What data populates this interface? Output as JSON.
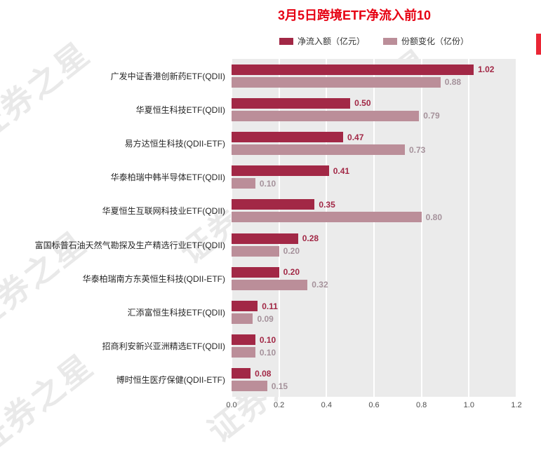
{
  "title": "3月5日跨境ETF净流入前10",
  "watermark": "证券之星",
  "colors": {
    "inflow_bar": "#a22846",
    "share_change_bar": "#bb8e99",
    "title_red": "#e60012"
  },
  "legend": [
    {
      "label": "净流入额（亿元）"
    },
    {
      "label": "份额变化（亿份）"
    }
  ],
  "chart_data": {
    "type": "bar",
    "orientation": "horizontal",
    "title": "3月5日跨境ETF净流入前10",
    "xlabel": "",
    "ylabel": "",
    "xlim": [
      0,
      1.2
    ],
    "xticks": [
      "0.0",
      "0.2",
      "0.4",
      "0.6",
      "0.8",
      "1.0",
      "1.2"
    ],
    "grid": true,
    "legend_position": "top",
    "categories": [
      "广发中证香港创新药ETF(QDII)",
      "华夏恒生科技ETF(QDII)",
      "易方达恒生科技(QDII-ETF)",
      "华泰柏瑞中韩半导体ETF(QDII)",
      "华夏恒生互联网科技业ETF(QDII)",
      "富国标普石油天然气勘探及生产精选行业ETF(QDII)",
      "华泰柏瑞南方东英恒生科技(QDII-ETF)",
      "汇添富恒生科技ETF(QDII)",
      "招商利安新兴亚洲精选ETF(QDII)",
      "博时恒生医疗保健(QDII-ETF)"
    ],
    "series": [
      {
        "name": "净流入额（亿元）",
        "values": [
          1.02,
          0.5,
          0.47,
          0.41,
          0.35,
          0.28,
          0.2,
          0.11,
          0.1,
          0.08
        ]
      },
      {
        "name": "份额变化（亿份）",
        "values": [
          0.88,
          0.79,
          0.73,
          0.1,
          0.8,
          0.2,
          0.32,
          0.09,
          0.1,
          0.15
        ]
      }
    ]
  }
}
